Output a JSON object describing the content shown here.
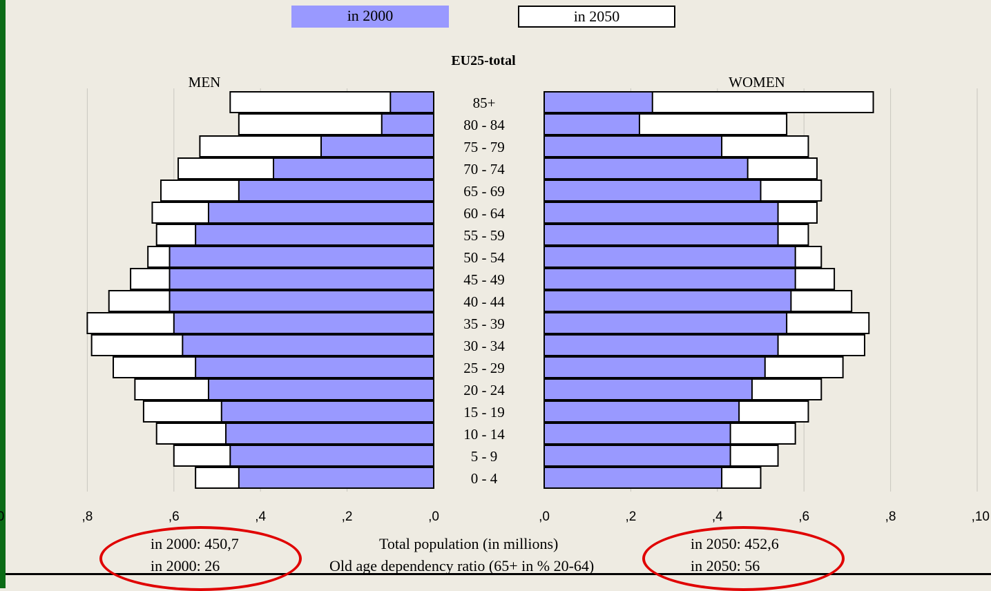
{
  "legend": {
    "label_2000": "in 2000",
    "label_2050": "in 2050"
  },
  "colors": {
    "bar_2000": "#9999ff",
    "bar_2050": "#ffffff",
    "highlight": "#e00000",
    "band": "#0b6b16"
  },
  "stats": {
    "total_label": "Total population (in millions)",
    "ratio_label": "Old age dependency ratio (65+ in % 20-64)",
    "total_2000": "in 2000:  450,7",
    "ratio_2000": "in 2000:  26",
    "total_2050": "in 2050:  452,6",
    "ratio_2050": "in 2050:  56"
  },
  "chart_data": {
    "type": "bar",
    "title": "EU25-total",
    "left_label": "MEN",
    "right_label": "WOMEN",
    "categories": [
      "85+",
      "80 - 84",
      "75 - 79",
      "70 - 74",
      "65 - 69",
      "60 - 64",
      "55 - 59",
      "50 - 54",
      "45 - 49",
      "40 - 44",
      "35 - 39",
      "30 - 34",
      "25 - 29",
      "20 - 24",
      "15 - 19",
      "10 - 14",
      "5 - 9",
      "0 - 4"
    ],
    "men_ticks": [
      "0",
      ",8",
      ",6",
      ",4",
      ",2",
      ",0"
    ],
    "women_ticks": [
      ",0",
      ",2",
      ",4",
      ",6",
      ",8",
      ",10"
    ],
    "xlim": [
      0,
      1.0
    ],
    "series": [
      {
        "name": "in 2000",
        "men": [
          0.1,
          0.12,
          0.26,
          0.37,
          0.45,
          0.52,
          0.55,
          0.61,
          0.61,
          0.61,
          0.6,
          0.58,
          0.55,
          0.52,
          0.49,
          0.48,
          0.47,
          0.45
        ],
        "women": [
          0.25,
          0.22,
          0.41,
          0.47,
          0.5,
          0.54,
          0.54,
          0.58,
          0.58,
          0.57,
          0.56,
          0.54,
          0.51,
          0.48,
          0.45,
          0.43,
          0.43,
          0.41
        ]
      },
      {
        "name": "in 2050",
        "men": [
          0.47,
          0.45,
          0.54,
          0.59,
          0.63,
          0.65,
          0.64,
          0.66,
          0.7,
          0.75,
          0.8,
          0.79,
          0.74,
          0.69,
          0.67,
          0.64,
          0.6,
          0.55
        ],
        "women": [
          0.76,
          0.56,
          0.61,
          0.63,
          0.64,
          0.63,
          0.61,
          0.64,
          0.67,
          0.71,
          0.75,
          0.74,
          0.69,
          0.64,
          0.61,
          0.58,
          0.54,
          0.5
        ]
      }
    ]
  }
}
